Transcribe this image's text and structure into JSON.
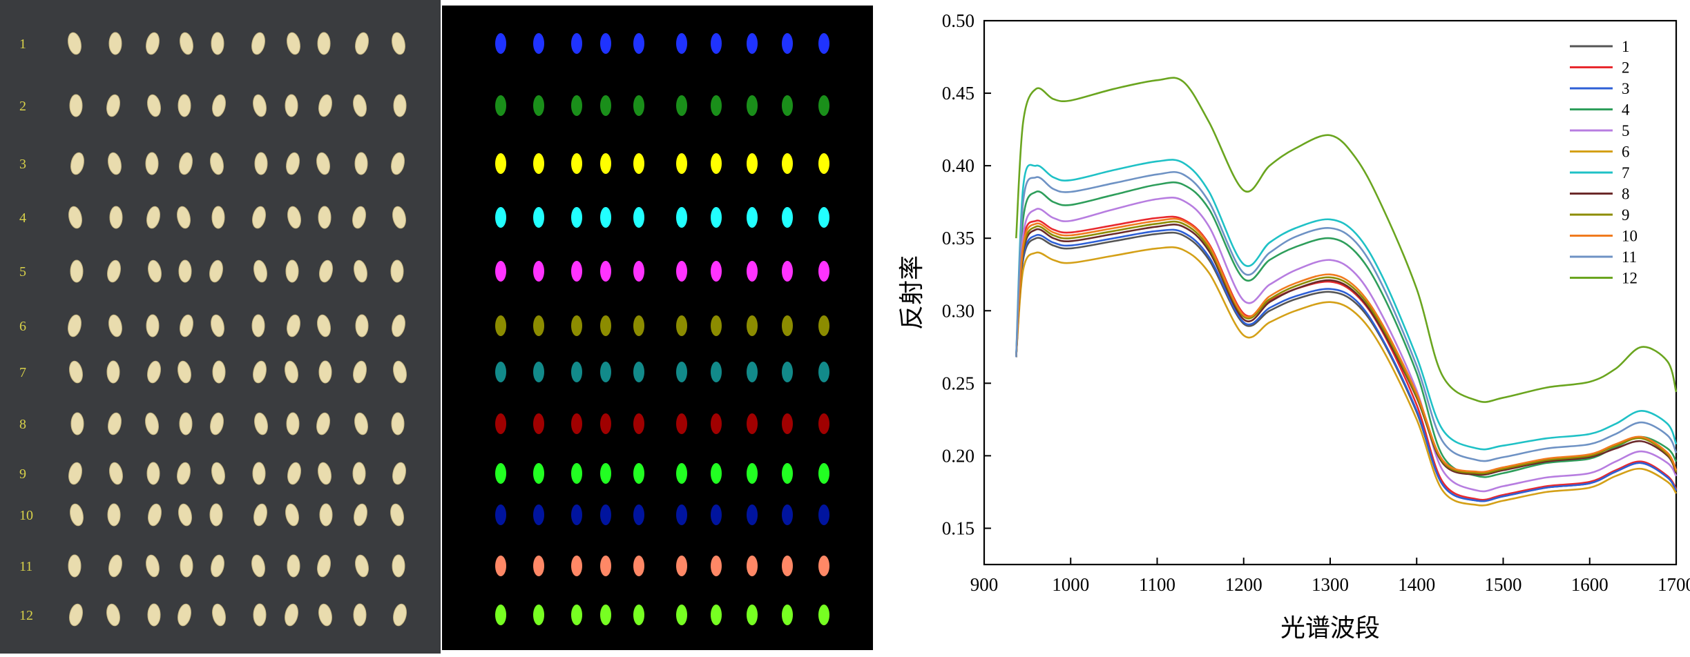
{
  "photo_panel": {
    "row_labels": [
      "1",
      "2",
      "3",
      "4",
      "5",
      "6",
      "7",
      "8",
      "9",
      "10",
      "11",
      "12"
    ],
    "label_color": "#d9d24a",
    "seed_color": "#e9dcae",
    "background": "#3a3c3f"
  },
  "segmentation_panel": {
    "row_colors": [
      "#1f33ff",
      "#1a8f1a",
      "#ffff00",
      "#22ffff",
      "#ff33ff",
      "#8c8c00",
      "#128a8a",
      "#a00000",
      "#22ff22",
      "#00149e",
      "#ff8866",
      "#77ff22"
    ],
    "background": "#000000"
  },
  "chart_data": {
    "type": "line",
    "xlabel": "光谱波段",
    "ylabel": "反射率",
    "xlim": [
      900,
      1700
    ],
    "ylim": [
      0.125,
      0.5
    ],
    "xticks": [
      900,
      1000,
      1100,
      1200,
      1300,
      1400,
      1500,
      1600,
      1700
    ],
    "yticks": [
      0.15,
      0.2,
      0.25,
      0.3,
      0.35,
      0.4,
      0.45,
      0.5
    ],
    "ytick_labels": [
      "0.15",
      "0.20",
      "0.25",
      "0.30",
      "0.35",
      "0.40",
      "0.45",
      "0.50"
    ],
    "grid": false,
    "legend": "top-right",
    "x": [
      937,
      945,
      960,
      980,
      1000,
      1050,
      1100,
      1130,
      1160,
      1200,
      1230,
      1260,
      1300,
      1330,
      1360,
      1400,
      1430,
      1470,
      1500,
      1550,
      1600,
      1630,
      1660,
      1690,
      1700
    ],
    "series": [
      {
        "name": "1",
        "color": "#555555",
        "values": [
          0.268,
          0.335,
          0.35,
          0.345,
          0.343,
          0.348,
          0.353,
          0.352,
          0.335,
          0.291,
          0.3,
          0.308,
          0.313,
          0.305,
          0.28,
          0.23,
          0.18,
          0.169,
          0.172,
          0.178,
          0.181,
          0.189,
          0.195,
          0.185,
          0.176
        ]
      },
      {
        "name": "2",
        "color": "#e8292e",
        "values": [
          0.268,
          0.348,
          0.362,
          0.356,
          0.354,
          0.359,
          0.364,
          0.363,
          0.346,
          0.298,
          0.307,
          0.315,
          0.32,
          0.311,
          0.286,
          0.235,
          0.182,
          0.17,
          0.173,
          0.179,
          0.182,
          0.19,
          0.196,
          0.186,
          0.177
        ]
      },
      {
        "name": "3",
        "color": "#2d5fd6",
        "values": [
          0.268,
          0.337,
          0.352,
          0.347,
          0.345,
          0.35,
          0.355,
          0.354,
          0.337,
          0.292,
          0.302,
          0.31,
          0.315,
          0.307,
          0.281,
          0.231,
          0.18,
          0.169,
          0.172,
          0.178,
          0.181,
          0.189,
          0.195,
          0.185,
          0.176
        ]
      },
      {
        "name": "4",
        "color": "#2e9e5b",
        "values": [
          0.268,
          0.363,
          0.382,
          0.375,
          0.373,
          0.38,
          0.387,
          0.387,
          0.37,
          0.322,
          0.335,
          0.344,
          0.35,
          0.34,
          0.312,
          0.257,
          0.2,
          0.186,
          0.188,
          0.195,
          0.198,
          0.206,
          0.213,
          0.205,
          0.196
        ]
      },
      {
        "name": "5",
        "color": "#b77de0",
        "values": [
          0.268,
          0.352,
          0.37,
          0.364,
          0.362,
          0.37,
          0.377,
          0.376,
          0.358,
          0.307,
          0.318,
          0.328,
          0.335,
          0.325,
          0.297,
          0.245,
          0.19,
          0.176,
          0.179,
          0.185,
          0.188,
          0.196,
          0.203,
          0.195,
          0.186
        ]
      },
      {
        "name": "6",
        "color": "#d4a017",
        "values": [
          0.268,
          0.328,
          0.34,
          0.335,
          0.333,
          0.338,
          0.343,
          0.342,
          0.326,
          0.283,
          0.292,
          0.3,
          0.306,
          0.298,
          0.274,
          0.225,
          0.176,
          0.166,
          0.169,
          0.175,
          0.178,
          0.186,
          0.191,
          0.182,
          0.174
        ]
      },
      {
        "name": "7",
        "color": "#1fc1c6",
        "values": [
          0.268,
          0.385,
          0.4,
          0.392,
          0.39,
          0.397,
          0.403,
          0.402,
          0.382,
          0.332,
          0.347,
          0.357,
          0.363,
          0.353,
          0.324,
          0.268,
          0.218,
          0.205,
          0.207,
          0.212,
          0.215,
          0.222,
          0.231,
          0.222,
          0.208
        ]
      },
      {
        "name": "8",
        "color": "#6b2a2a",
        "values": [
          0.268,
          0.34,
          0.356,
          0.35,
          0.348,
          0.353,
          0.358,
          0.358,
          0.341,
          0.294,
          0.306,
          0.315,
          0.321,
          0.312,
          0.287,
          0.24,
          0.195,
          0.187,
          0.19,
          0.196,
          0.199,
          0.205,
          0.21,
          0.2,
          0.188
        ]
      },
      {
        "name": "9",
        "color": "#8c8c00",
        "values": [
          0.268,
          0.342,
          0.358,
          0.352,
          0.35,
          0.355,
          0.36,
          0.36,
          0.343,
          0.296,
          0.308,
          0.317,
          0.323,
          0.314,
          0.289,
          0.241,
          0.196,
          0.188,
          0.191,
          0.197,
          0.2,
          0.207,
          0.212,
          0.201,
          0.189
        ]
      },
      {
        "name": "10",
        "color": "#f07a1e",
        "values": [
          0.268,
          0.345,
          0.36,
          0.354,
          0.352,
          0.357,
          0.362,
          0.362,
          0.345,
          0.297,
          0.31,
          0.319,
          0.325,
          0.316,
          0.291,
          0.243,
          0.197,
          0.189,
          0.192,
          0.198,
          0.201,
          0.208,
          0.213,
          0.202,
          0.19
        ]
      },
      {
        "name": "11",
        "color": "#6e92c4",
        "values": [
          0.268,
          0.375,
          0.392,
          0.384,
          0.382,
          0.388,
          0.394,
          0.394,
          0.375,
          0.326,
          0.34,
          0.351,
          0.357,
          0.347,
          0.318,
          0.262,
          0.21,
          0.197,
          0.199,
          0.205,
          0.208,
          0.215,
          0.223,
          0.214,
          0.202
        ]
      },
      {
        "name": "12",
        "color": "#6aa51f",
        "values": [
          0.35,
          0.43,
          0.453,
          0.446,
          0.445,
          0.453,
          0.459,
          0.458,
          0.43,
          0.383,
          0.4,
          0.412,
          0.421,
          0.405,
          0.372,
          0.315,
          0.255,
          0.238,
          0.24,
          0.247,
          0.251,
          0.26,
          0.275,
          0.265,
          0.244
        ]
      }
    ]
  }
}
